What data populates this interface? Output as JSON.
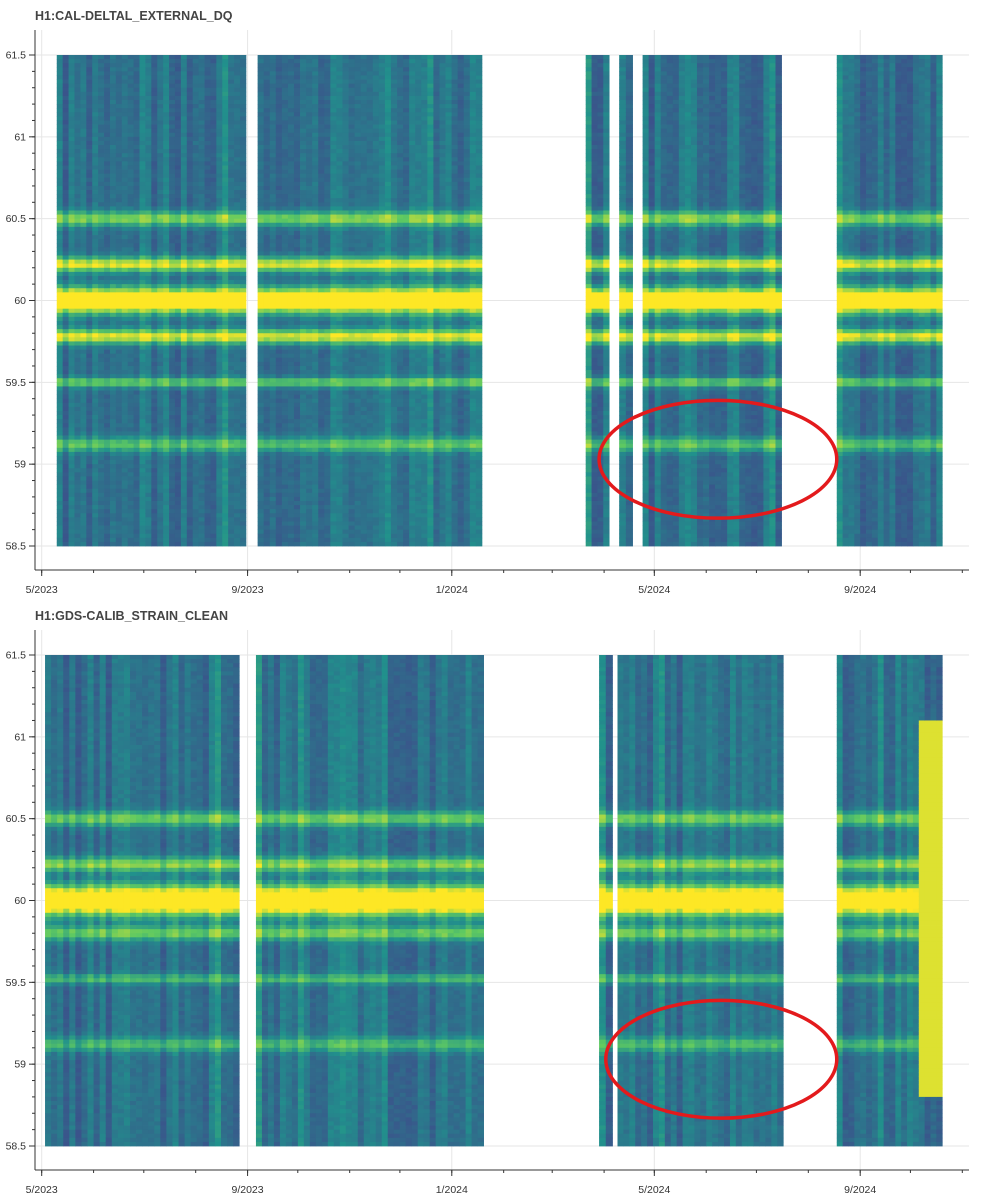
{
  "chart_data": [
    {
      "type": "heatmap",
      "title": "H1:CAL-DELTAL_EXTERNAL_DQ",
      "xlabel": "",
      "ylabel": "",
      "x_ticks": [
        "5/2023",
        "9/2023",
        "1/2024",
        "5/2024",
        "9/2024"
      ],
      "y_ticks": [
        "61.5",
        "61",
        "60.5",
        "60",
        "59.5",
        "59",
        "58.5"
      ],
      "ylim": [
        58.5,
        61.5
      ],
      "xlim": [
        "2023-04-27",
        "2024-11-05"
      ],
      "colormap": [
        "#440154",
        "#3b528b",
        "#21918c",
        "#5ec962",
        "#fde725"
      ],
      "grid": true,
      "data_segments": [
        {
          "start": "2023-05-10",
          "end": "2023-08-31"
        },
        {
          "start": "2023-09-07",
          "end": "2024-01-19"
        },
        {
          "start": "2024-03-21",
          "end": "2024-04-04"
        },
        {
          "start": "2024-04-10",
          "end": "2024-04-18"
        },
        {
          "start": "2024-04-24",
          "end": "2024-07-16"
        },
        {
          "start": "2024-08-18",
          "end": "2024-10-20"
        }
      ],
      "bright_lines": [
        {
          "freq": 60.0,
          "intensity": 1.0,
          "width": 0.05
        },
        {
          "freq": 60.22,
          "intensity": 0.6,
          "width": 0.03
        },
        {
          "freq": 59.78,
          "intensity": 0.6,
          "width": 0.03
        },
        {
          "freq": 60.5,
          "intensity": 0.45,
          "width": 0.03
        },
        {
          "freq": 59.5,
          "intensity": 0.4,
          "width": 0.02
        },
        {
          "freq": 59.12,
          "intensity": 0.35,
          "width": 0.03
        }
      ],
      "annotation": {
        "shape": "ellipse",
        "color": "#e31a1c",
        "center_date": "2024-06-08",
        "center_freq": 59.03,
        "date_radius_days": 71,
        "freq_radius": 0.36
      }
    },
    {
      "type": "heatmap",
      "title": "H1:GDS-CALIB_STRAIN_CLEAN",
      "xlabel": "",
      "ylabel": "",
      "x_ticks": [
        "5/2023",
        "9/2023",
        "1/2024",
        "5/2024",
        "9/2024"
      ],
      "y_ticks": [
        "61.5",
        "61",
        "60.5",
        "60",
        "59.5",
        "59",
        "58.5"
      ],
      "ylim": [
        58.5,
        61.5
      ],
      "xlim": [
        "2023-04-27",
        "2024-11-05"
      ],
      "colormap": [
        "#440154",
        "#3b528b",
        "#21918c",
        "#5ec962",
        "#fde725"
      ],
      "grid": true,
      "data_segments": [
        {
          "start": "2023-05-03",
          "end": "2023-08-27"
        },
        {
          "start": "2023-09-06",
          "end": "2024-01-20"
        },
        {
          "start": "2024-03-29",
          "end": "2024-04-06"
        },
        {
          "start": "2024-04-09",
          "end": "2024-07-17"
        },
        {
          "start": "2024-08-18",
          "end": "2024-10-20"
        }
      ],
      "bright_lines": [
        {
          "freq": 60.0,
          "intensity": 1.0,
          "width": 0.06
        },
        {
          "freq": 60.22,
          "intensity": 0.45,
          "width": 0.03
        },
        {
          "freq": 59.8,
          "intensity": 0.4,
          "width": 0.03
        },
        {
          "freq": 60.5,
          "intensity": 0.4,
          "width": 0.03
        },
        {
          "freq": 59.52,
          "intensity": 0.3,
          "width": 0.02
        },
        {
          "freq": 59.12,
          "intensity": 0.3,
          "width": 0.03
        }
      ],
      "broadband_event": {
        "start": "2024-10-04",
        "end": "2024-10-20",
        "freq_range": [
          58.8,
          61.1
        ]
      },
      "annotation": {
        "shape": "ellipse",
        "color": "#e31a1c",
        "center_date": "2024-06-10",
        "center_freq": 59.03,
        "date_radius_days": 69,
        "freq_radius": 0.36
      }
    }
  ]
}
